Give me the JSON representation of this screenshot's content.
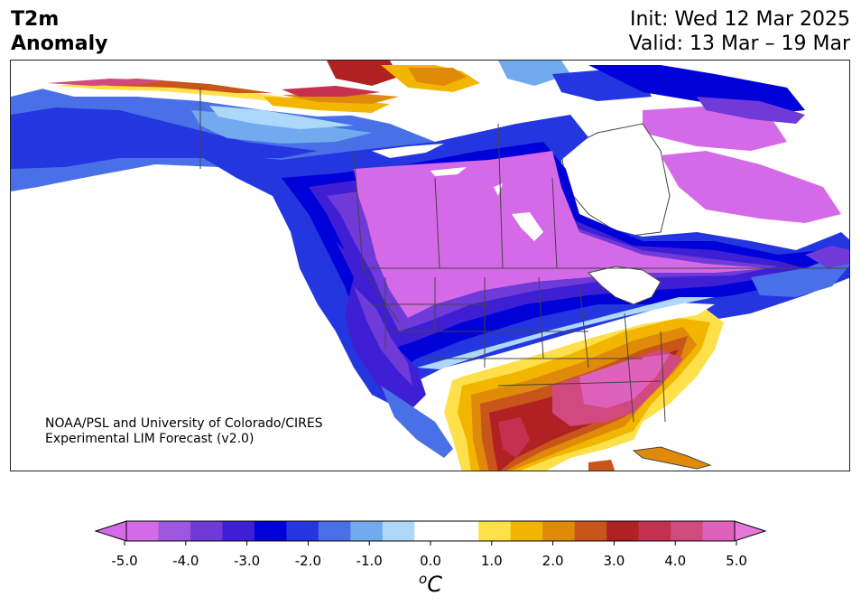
{
  "header": {
    "title_line1": "T2m",
    "title_line2": "Anomaly",
    "init": "Init: Wed 12 Mar 2025",
    "valid": "Valid: 13 Mar – 19 Mar"
  },
  "credit": {
    "line1": "NOAA/PSL and University of Colorado/CIRES",
    "line2": "Experimental LIM Forecast (v2.0)"
  },
  "colorbar": {
    "unit_base": "C",
    "unit_sup": "o",
    "ticks": [
      "-5.0",
      "-4.0",
      "-3.0",
      "-2.0",
      "-1.0",
      "0.0",
      "1.0",
      "2.0",
      "3.0",
      "4.0",
      "5.0"
    ],
    "colors": [
      "#d46ae8",
      "#9e56e0",
      "#6f3ad8",
      "#3e1fd4",
      "#0000d8",
      "#2436e0",
      "#4a70e8",
      "#72aaf0",
      "#aed8fa",
      "#ffffff",
      "#ffffff",
      "#fde04a",
      "#f2b600",
      "#e08a0a",
      "#c8561a",
      "#b02222",
      "#c43050",
      "#d04a80",
      "#de62bc"
    ],
    "min_color": "#d46ae8",
    "max_color": "#e878d8"
  },
  "colors": {
    "ocean": "#ffffff",
    "border": "#444444"
  }
}
